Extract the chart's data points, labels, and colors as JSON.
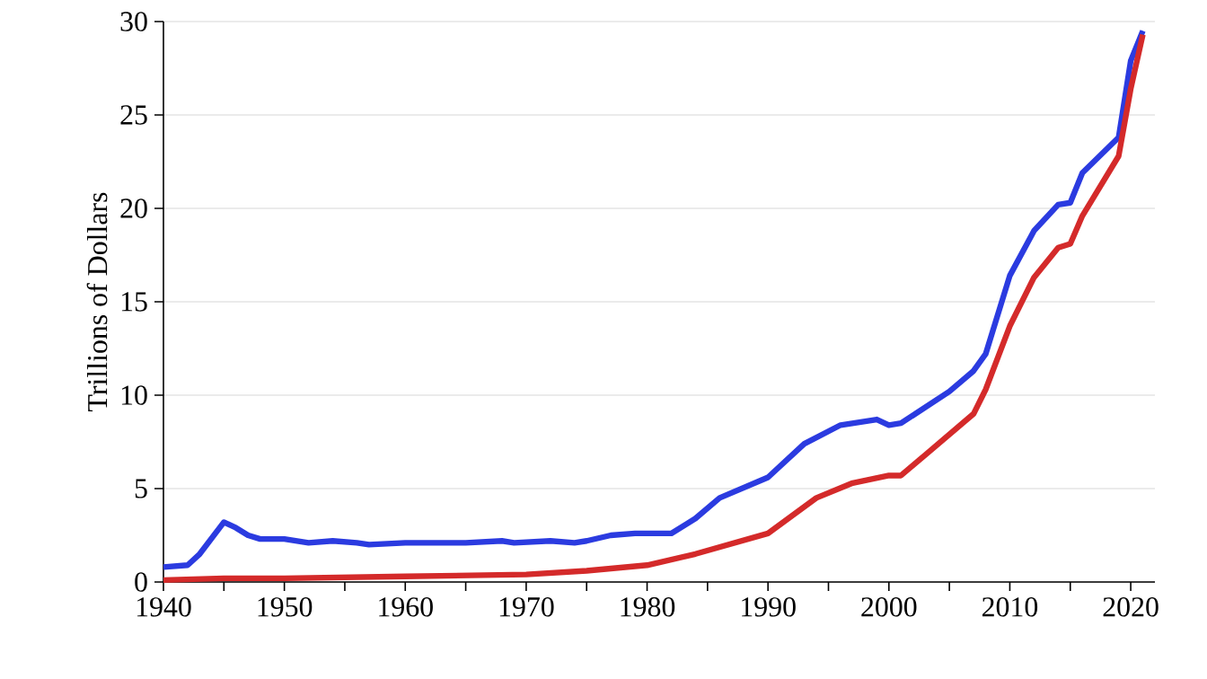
{
  "chart_data": {
    "type": "line",
    "ylabel": "Trillions of Dollars",
    "xlim": [
      1940,
      2022
    ],
    "ylim": [
      0,
      30
    ],
    "xticks": [
      1940,
      {
        "value": 1945,
        "label": null
      },
      1950,
      {
        "value": 1955,
        "label": null
      },
      1960,
      {
        "value": 1965,
        "label": null
      },
      1970,
      {
        "value": 1975,
        "label": null
      },
      1980,
      {
        "value": 1985,
        "label": null
      },
      1990,
      {
        "value": 1995,
        "label": null
      },
      2000,
      {
        "value": 2005,
        "label": null
      },
      2010,
      {
        "value": 2015,
        "label": null
      },
      2020
    ],
    "yticks": [
      0,
      5,
      10,
      15,
      20,
      25,
      30
    ],
    "grid": "y",
    "marker": "none",
    "line_style": "solid",
    "series": [
      {
        "color": "#2b3be0",
        "x": [
          1940,
          1942,
          1943,
          1945,
          1946,
          1947,
          1948,
          1950,
          1952,
          1954,
          1956,
          1957,
          1960,
          1965,
          1968,
          1969,
          1972,
          1974,
          1975,
          1977,
          1979,
          1982,
          1984,
          1986,
          1990,
          1993,
          1996,
          1999,
          2000,
          2001,
          2005,
          2007,
          2008,
          2010,
          2012,
          2014,
          2015,
          2016,
          2019,
          2020,
          2021
        ],
        "values": [
          0.8,
          0.9,
          1.5,
          3.2,
          2.9,
          2.5,
          2.3,
          2.3,
          2.1,
          2.2,
          2.1,
          2.0,
          2.1,
          2.1,
          2.2,
          2.1,
          2.2,
          2.1,
          2.2,
          2.5,
          2.6,
          2.6,
          3.4,
          4.5,
          5.6,
          7.4,
          8.4,
          8.7,
          8.4,
          8.5,
          10.2,
          11.3,
          12.2,
          16.4,
          18.8,
          20.2,
          20.3,
          21.9,
          23.8,
          27.9,
          29.5
        ]
      },
      {
        "color": "#d42a2a",
        "x": [
          1940,
          1945,
          1950,
          1960,
          1970,
          1975,
          1980,
          1984,
          1990,
          1994,
          1997,
          2000,
          2001,
          2003,
          2007,
          2008,
          2010,
          2012,
          2014,
          2015,
          2016,
          2019,
          2020,
          2021
        ],
        "values": [
          0.1,
          0.2,
          0.2,
          0.3,
          0.4,
          0.6,
          0.9,
          1.5,
          2.6,
          4.5,
          5.3,
          5.7,
          5.7,
          6.8,
          9.0,
          10.3,
          13.7,
          16.3,
          17.9,
          18.1,
          19.6,
          22.8,
          26.4,
          29.3
        ]
      }
    ]
  }
}
